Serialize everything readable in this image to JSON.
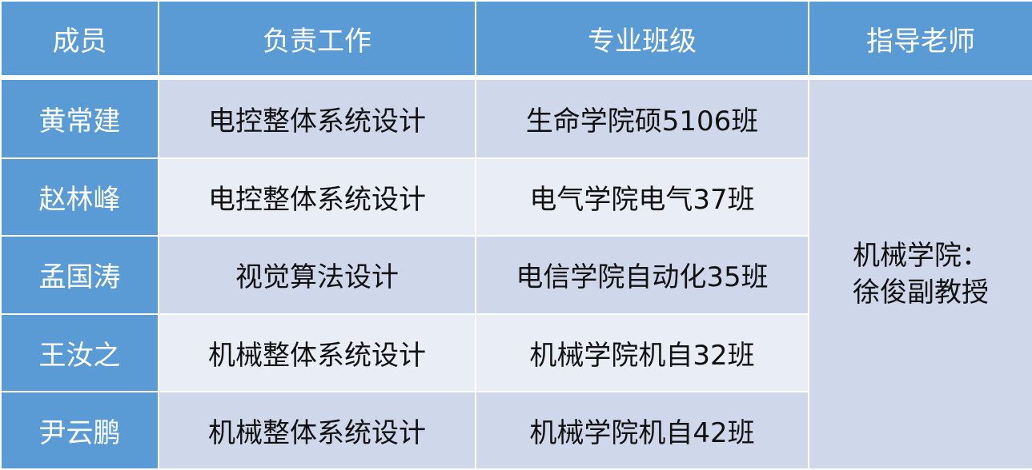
{
  "headers": [
    "成员",
    "负责工作",
    "专业班级",
    "指导老师"
  ],
  "rows": [
    {
      "name": "黄常建",
      "work": "电控整体系统设计",
      "class": "生命学院硕5106班"
    },
    {
      "name": "赵林峰",
      "work": "电控整体系统设计",
      "class": "电气学院电气37班"
    },
    {
      "name": "孟国涛",
      "work": "视觉算法设计",
      "class": "电信学院自动化35班"
    },
    {
      "name": "王汝之",
      "work": "机械整体系统设计",
      "class": "机械学院机自32班"
    },
    {
      "name": "尹云鹏",
      "work": "机械整体系统设计",
      "class": "机械学院机自42班"
    }
  ],
  "advisor": {
    "line1": "机械学院：",
    "line2": "徐俊副教授"
  },
  "colors": {
    "header": "#5b9bd5",
    "row_dark": "#cfd8eb",
    "row_light": "#e9edf6"
  }
}
